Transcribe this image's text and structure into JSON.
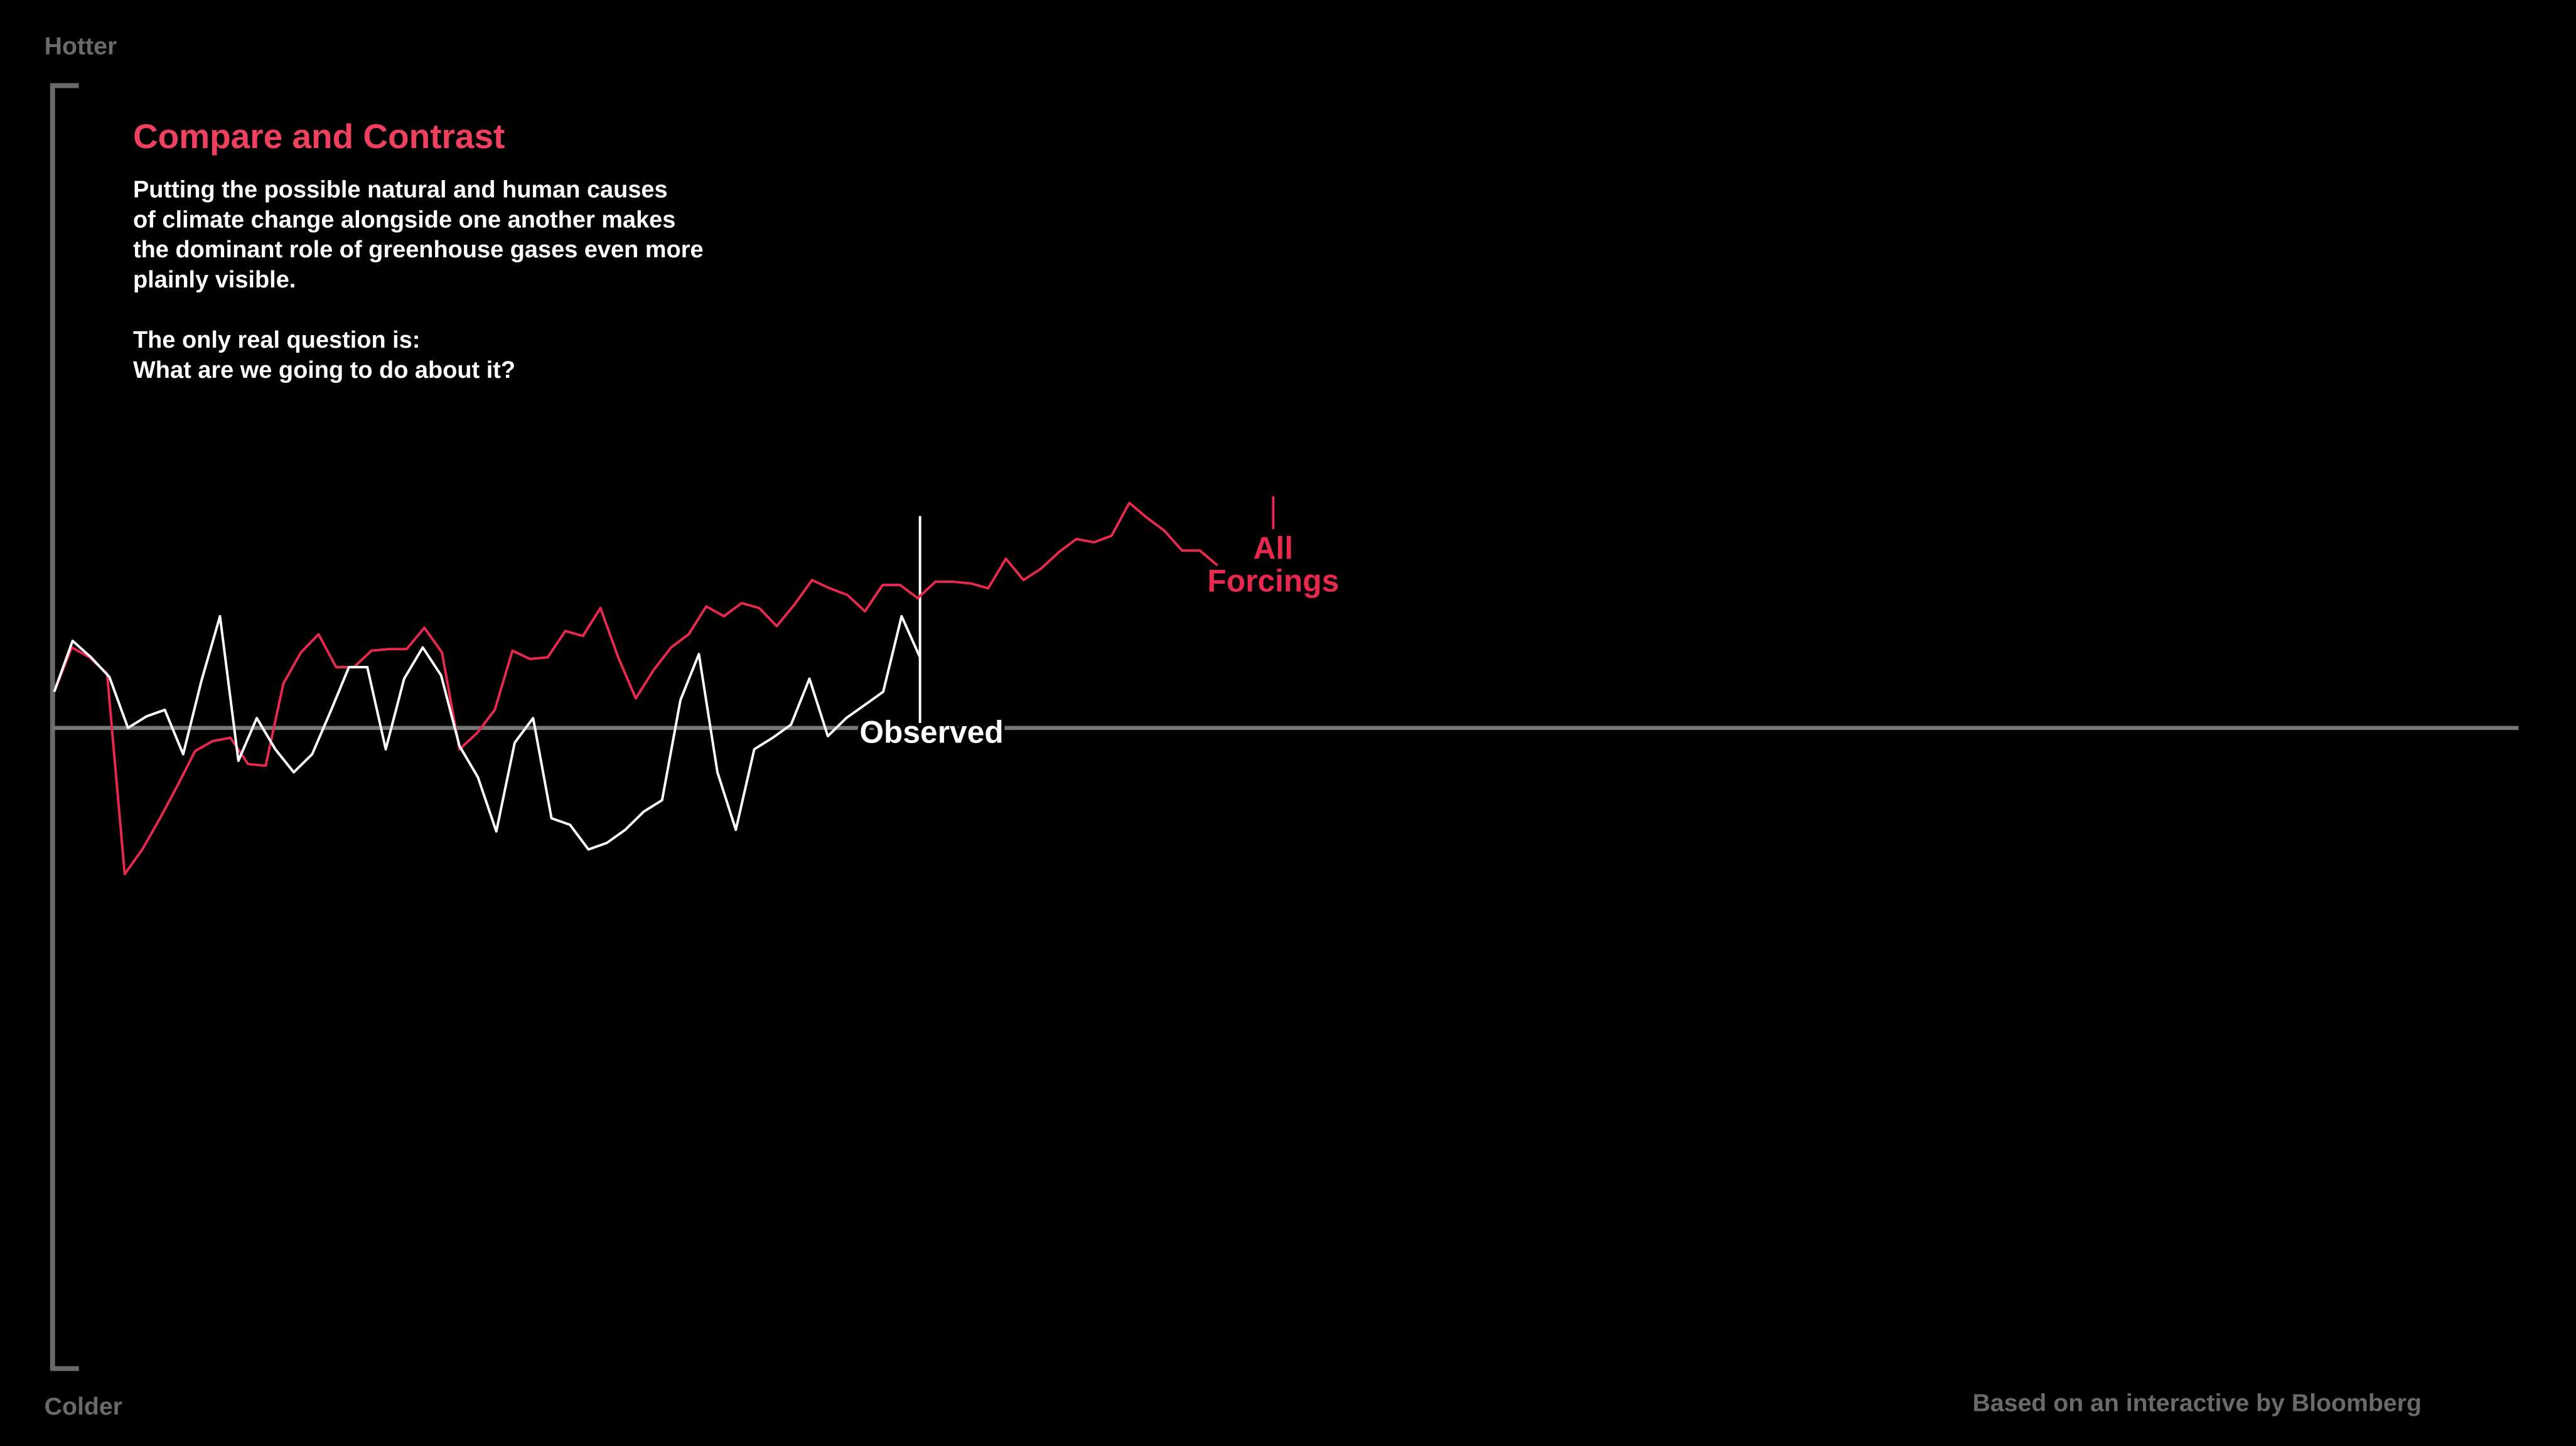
{
  "chart_data": {
    "type": "line",
    "title": "Compare and Contrast",
    "paragraphs": [
      [
        "Putting the possible natural and human causes",
        "of climate change alongside one another makes",
        "the dominant role of greenhouse gases even more",
        "plainly visible."
      ],
      [
        "The only real question is:",
        "What are we going to do about it?"
      ]
    ],
    "y_top_label": "Hotter",
    "y_bottom_label": "Colder",
    "source": "Based on an interactive by Bloomberg",
    "ylim": [
      -3.9,
      3.91
    ],
    "series": [
      {
        "name": "All Forcings",
        "color": "#e8294f",
        "values": [
          0.22,
          0.49,
          0.43,
          0.33,
          -0.89,
          -0.74,
          -0.55,
          -0.35,
          -0.14,
          -0.08,
          -0.06,
          -0.22,
          -0.23,
          0.27,
          0.46,
          0.57,
          0.37,
          0.37,
          0.47,
          0.48,
          0.48,
          0.61,
          0.46,
          -0.13,
          -0.03,
          0.11,
          0.47,
          0.42,
          0.43,
          0.59,
          0.56,
          0.73,
          0.43,
          0.18,
          0.35,
          0.49,
          0.57,
          0.74,
          0.68,
          0.76,
          0.73,
          0.62,
          0.75,
          0.9,
          0.85,
          0.81,
          0.71,
          0.87,
          0.87,
          0.79,
          0.89,
          0.89,
          0.88,
          0.85,
          1.03,
          0.9,
          0.97,
          1.07,
          1.15,
          1.13,
          1.17,
          1.37,
          1.28,
          1.2,
          1.08,
          1.08,
          0.99
        ]
      },
      {
        "name": "Observed",
        "color": "#ffffff",
        "values": [
          0.22,
          0.53,
          0.43,
          0.31,
          0,
          0.07,
          0.11,
          -0.16,
          0.29,
          0.68,
          -0.2,
          0.06,
          -0.13,
          -0.27,
          -0.16,
          0.1,
          0.37,
          0.37,
          -0.13,
          0.3,
          0.49,
          0.32,
          -0.11,
          -0.3,
          -0.63,
          -0.09,
          0.06,
          -0.55,
          -0.59,
          -0.74,
          -0.7,
          -0.62,
          -0.51,
          -0.44,
          0.17,
          0.45,
          -0.27,
          -0.62,
          -0.13,
          -0.06,
          0.02,
          0.3,
          -0.05,
          0.06,
          0.14,
          0.22,
          0.68,
          0.43
        ]
      }
    ]
  }
}
